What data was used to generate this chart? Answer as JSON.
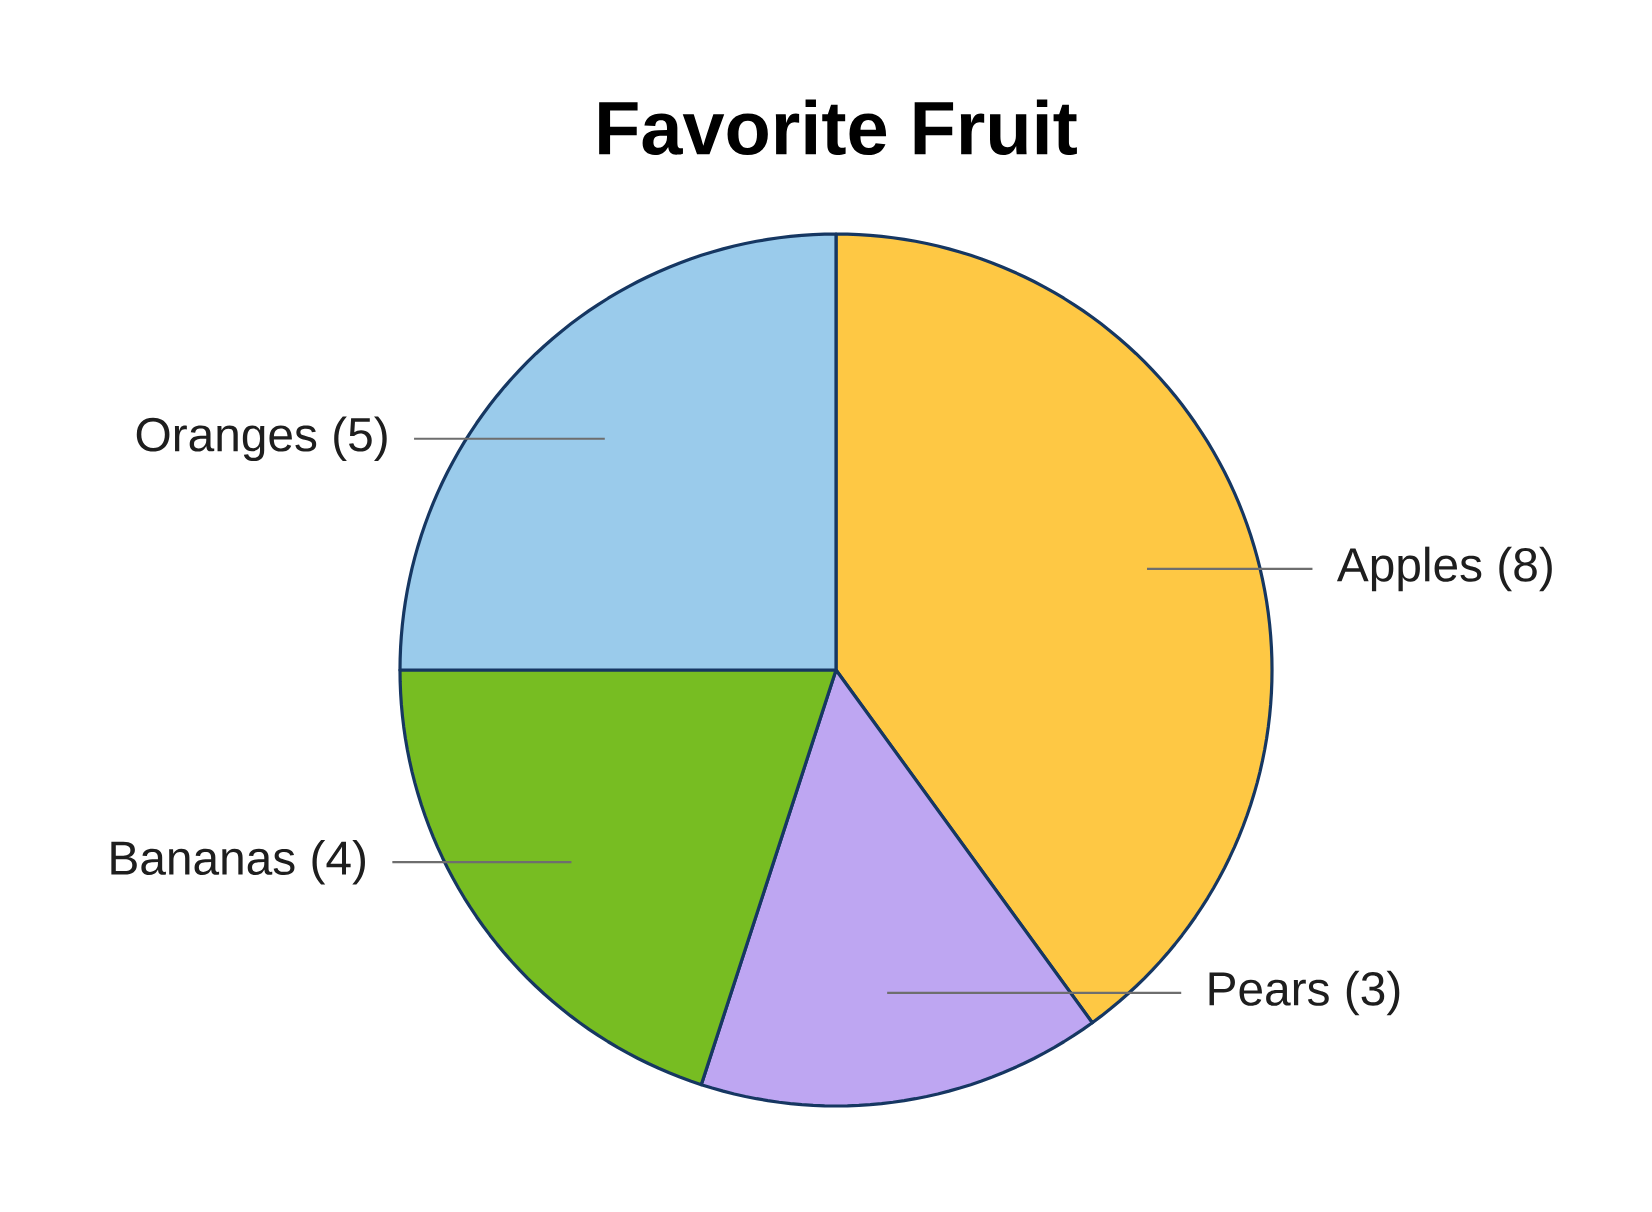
{
  "chart_data": {
    "type": "pie",
    "title": "Favorite Fruit",
    "categories": [
      "Apples",
      "Pears",
      "Bananas",
      "Oranges"
    ],
    "values": [
      8,
      3,
      4,
      5
    ],
    "value_labels": [
      "(8)",
      "(3)",
      "(4)",
      "(5)"
    ],
    "colors": [
      "#fec844",
      "#bea6f2",
      "#77bd22",
      "#9acbeb"
    ]
  }
}
